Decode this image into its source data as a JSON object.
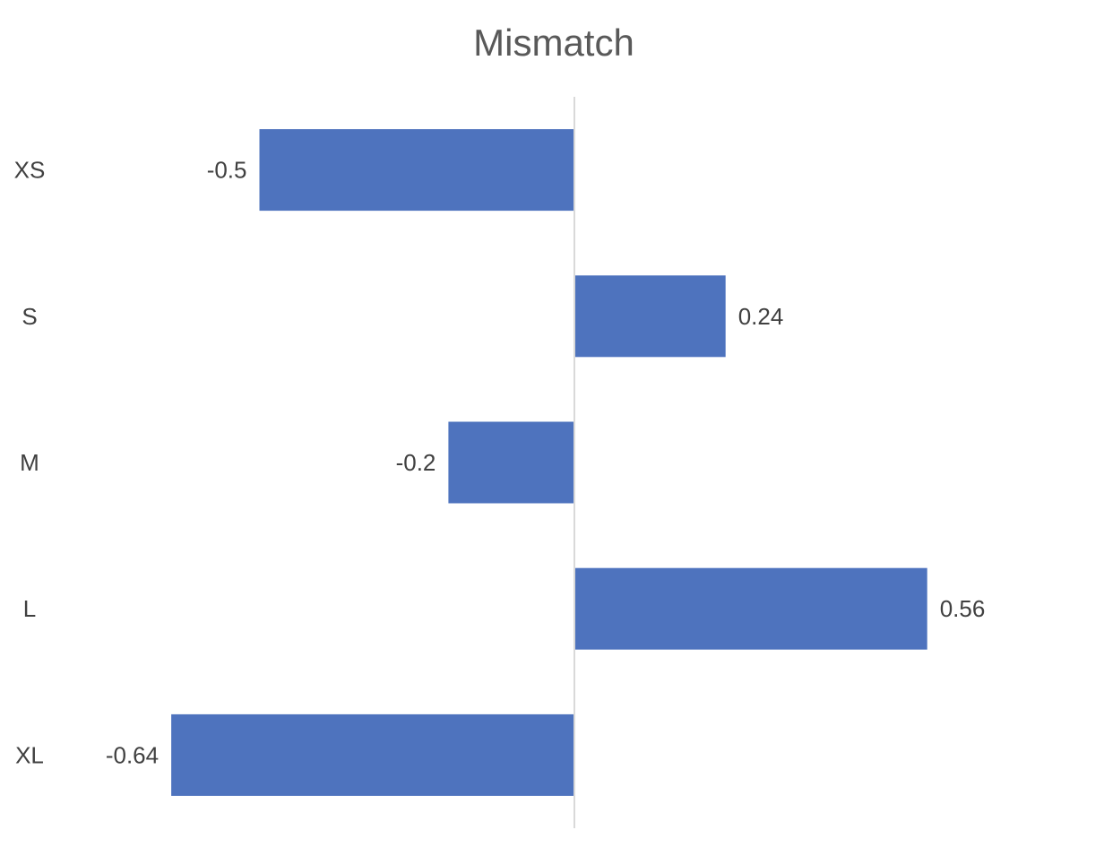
{
  "chart_data": {
    "type": "bar",
    "orientation": "horizontal",
    "title": "Mismatch",
    "xlabel": "",
    "ylabel": "",
    "categories": [
      "XS",
      "S",
      "M",
      "L",
      "XL"
    ],
    "values": [
      -0.5,
      0.24,
      -0.2,
      0.56,
      -0.64
    ],
    "data_labels": [
      "-0.5",
      "0.24",
      "-0.2",
      "0.56",
      "-0.64"
    ],
    "xlim": [
      -0.64,
      0.56
    ],
    "grid": false,
    "legend": "none",
    "colors": {
      "bar": "#4E73BE",
      "axis": "#D9D9D9",
      "title": "#595959",
      "text": "#404040"
    }
  }
}
